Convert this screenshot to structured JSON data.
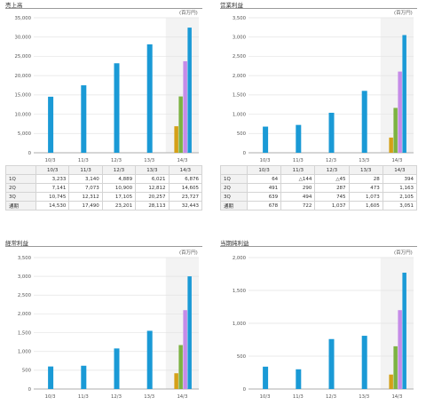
{
  "unit_label": "(百万円)",
  "tables": [
    {
      "headers": [
        "10/3",
        "11/3",
        "12/3",
        "13/3",
        "14/3"
      ],
      "rows": [
        {
          "label": "1Q",
          "cells": [
            "3,233",
            "3,140",
            "4,889",
            "6,021",
            "6,876"
          ]
        },
        {
          "label": "2Q",
          "cells": [
            "7,141",
            "7,073",
            "10,900",
            "12,812",
            "14,605"
          ]
        },
        {
          "label": "3Q",
          "cells": [
            "10,745",
            "12,312",
            "17,105",
            "20,257",
            "23,727"
          ]
        },
        {
          "label": "通期",
          "cells": [
            "14,530",
            "17,490",
            "23,201",
            "28,113",
            "32,443"
          ]
        }
      ]
    },
    {
      "headers": [
        "10/3",
        "11/3",
        "12/3",
        "13/3",
        "14/3"
      ],
      "rows": [
        {
          "label": "1Q",
          "cells": [
            "64",
            "△144",
            "△45",
            "28",
            "394"
          ]
        },
        {
          "label": "2Q",
          "cells": [
            "491",
            "290",
            "287",
            "473",
            "1,163"
          ]
        },
        {
          "label": "3Q",
          "cells": [
            "639",
            "494",
            "745",
            "1,073",
            "2,105"
          ]
        },
        {
          "label": "通期",
          "cells": [
            "678",
            "722",
            "1,037",
            "1,605",
            "3,051"
          ]
        }
      ]
    }
  ],
  "chart_data": [
    {
      "type": "bar",
      "title": "売上高",
      "categories": [
        "10/3",
        "11/3",
        "12/3",
        "13/3",
        "14/3"
      ],
      "ylim": [
        0,
        35000
      ],
      "yticks": [
        0,
        5000,
        10000,
        15000,
        20000,
        25000,
        30000,
        35000
      ],
      "ytick_labels": [
        "0",
        "5,000",
        "10,000",
        "15,000",
        "20,000",
        "25,000",
        "30,000",
        "35,000"
      ],
      "full_year": [
        14530,
        17490,
        23201,
        28113,
        32443
      ],
      "latest_quarters": [
        6876,
        14605,
        23727
      ],
      "grid": true,
      "colors": {
        "full_year": "#1a9ad6",
        "q1": "#d4a017",
        "q2": "#7cb342",
        "q3": "#c58be8",
        "highlight_bg": "#f3f3f3"
      }
    },
    {
      "type": "bar",
      "title": "営業利益",
      "categories": [
        "10/3",
        "11/3",
        "12/3",
        "13/3",
        "14/3"
      ],
      "ylim": [
        0,
        3500
      ],
      "yticks": [
        0,
        500,
        1000,
        1500,
        2000,
        2500,
        3000,
        3500
      ],
      "ytick_labels": [
        "0",
        "500",
        "1,000",
        "1,500",
        "2,000",
        "2,500",
        "3,000",
        "3,500"
      ],
      "full_year": [
        678,
        722,
        1037,
        1605,
        3051
      ],
      "latest_quarters": [
        394,
        1163,
        2105
      ],
      "grid": true,
      "colors": {
        "full_year": "#1a9ad6",
        "q1": "#d4a017",
        "q2": "#7cb342",
        "q3": "#c58be8",
        "highlight_bg": "#f3f3f3"
      }
    },
    {
      "type": "bar",
      "title": "経常利益",
      "categories": [
        "10/3",
        "11/3",
        "12/3",
        "13/3",
        "14/3"
      ],
      "ylim": [
        0,
        3500
      ],
      "yticks": [
        0,
        500,
        1000,
        1500,
        2000,
        2500,
        3000,
        3500
      ],
      "ytick_labels": [
        "0",
        "500",
        "1,000",
        "1,500",
        "2,000",
        "2,500",
        "3,000",
        "3,500"
      ],
      "full_year": [
        600,
        620,
        1080,
        1550,
        3000
      ],
      "latest_quarters": [
        420,
        1170,
        2100
      ],
      "grid": true,
      "colors": {
        "full_year": "#1a9ad6",
        "q1": "#d4a017",
        "q2": "#7cb342",
        "q3": "#c58be8",
        "highlight_bg": "#f3f3f3"
      }
    },
    {
      "type": "bar",
      "title": "当期純利益",
      "categories": [
        "10/3",
        "11/3",
        "12/3",
        "13/3",
        "14/3"
      ],
      "ylim": [
        0,
        2000
      ],
      "yticks": [
        0,
        500,
        1000,
        1500,
        2000
      ],
      "ytick_labels": [
        "0",
        "500",
        "1,000",
        "1,500",
        "2,000"
      ],
      "full_year": [
        340,
        300,
        760,
        810,
        1770
      ],
      "latest_quarters": [
        220,
        650,
        1200
      ],
      "grid": true,
      "colors": {
        "full_year": "#1a9ad6",
        "q1": "#d4a017",
        "q2": "#7cb342",
        "q3": "#c58be8",
        "highlight_bg": "#f3f3f3"
      }
    }
  ]
}
